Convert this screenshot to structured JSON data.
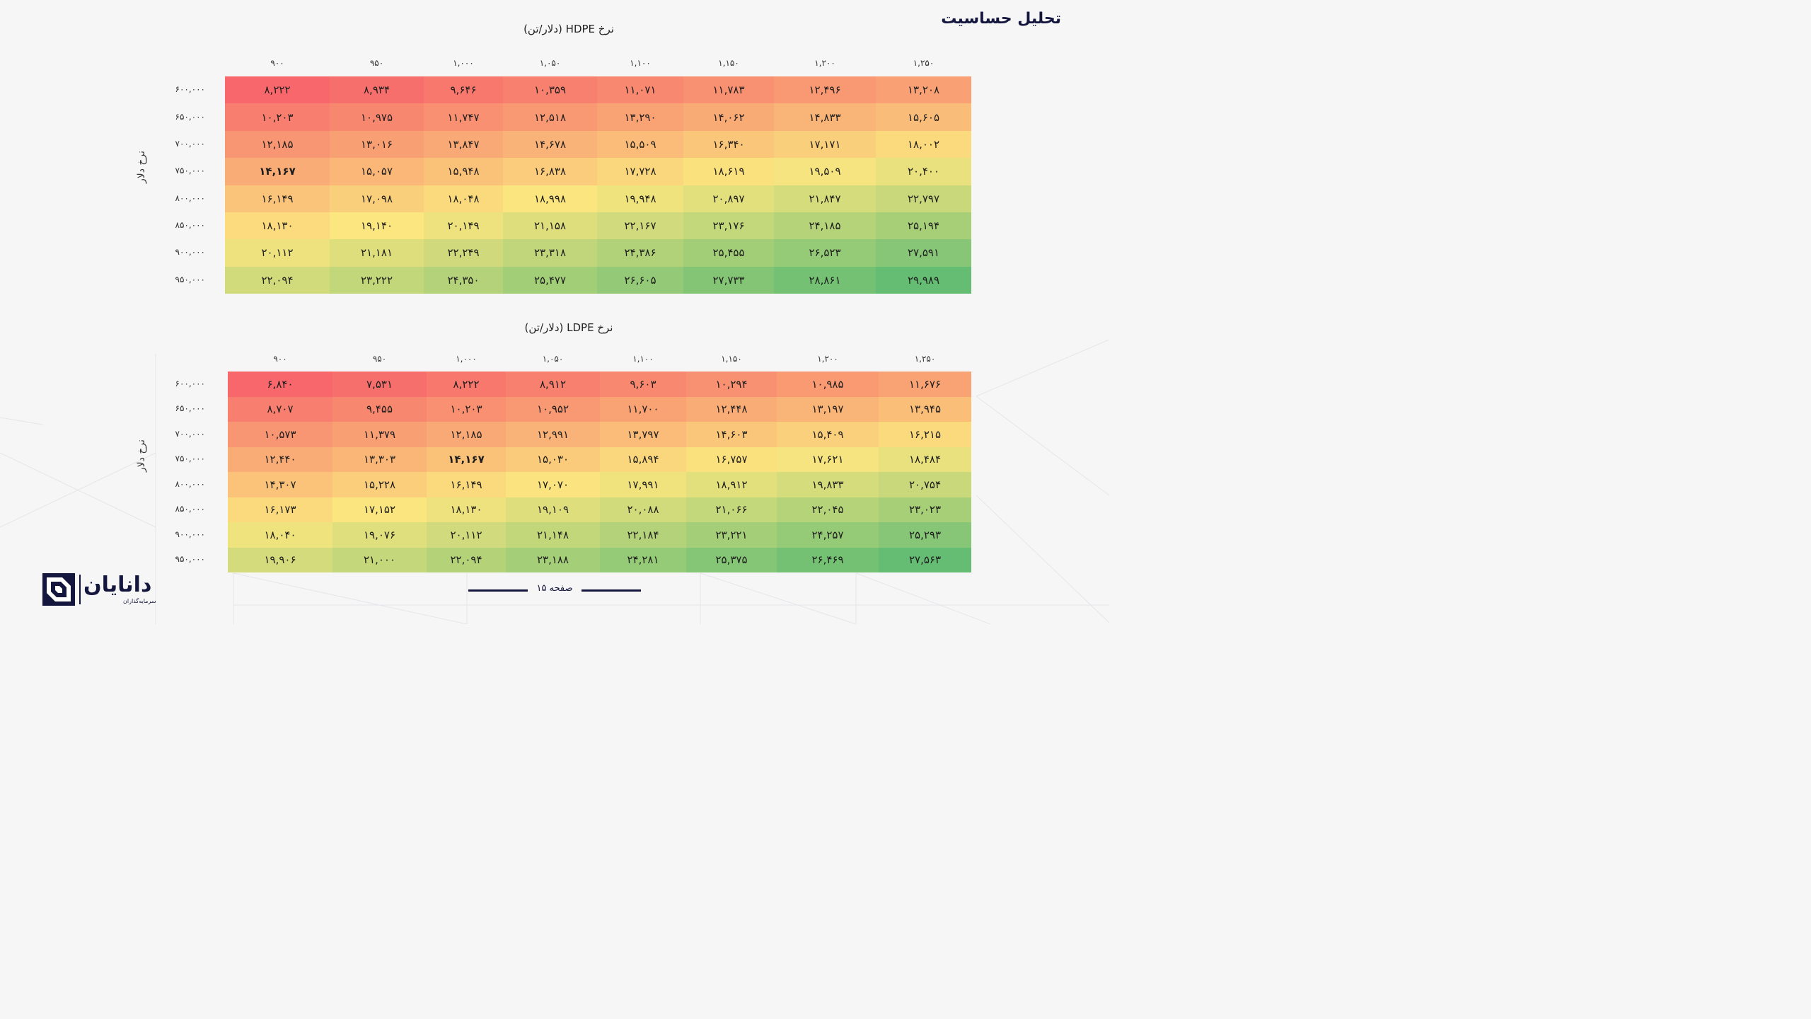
{
  "page_title": "تحلیل حساسیت",
  "tables": [
    {
      "title": "نرخ HDPE (دلار/تن)",
      "row_axis_label": "نرخ دلار",
      "columns": [
        "۹۰۰",
        "۹۵۰",
        "۱,۰۰۰",
        "۱,۰۵۰",
        "۱,۱۰۰",
        "۱,۱۵۰",
        "۱,۲۰۰",
        "۱,۲۵۰"
      ],
      "rows": [
        "۶۰۰,۰۰۰",
        "۶۵۰,۰۰۰",
        "۷۰۰,۰۰۰",
        "۷۵۰,۰۰۰",
        "۸۰۰,۰۰۰",
        "۸۵۰,۰۰۰",
        "۹۰۰,۰۰۰",
        "۹۵۰,۰۰۰"
      ],
      "highlight": [
        3,
        0
      ],
      "values": [
        [
          "۸,۲۲۲",
          "۸,۹۳۴",
          "۹,۶۴۶",
          "۱۰,۳۵۹",
          "۱۱,۰۷۱",
          "۱۱,۷۸۳",
          "۱۲,۴۹۶",
          "۱۳,۲۰۸"
        ],
        [
          "۱۰,۲۰۳",
          "۱۰,۹۷۵",
          "۱۱,۷۴۷",
          "۱۲,۵۱۸",
          "۱۳,۲۹۰",
          "۱۴,۰۶۲",
          "۱۴,۸۳۳",
          "۱۵,۶۰۵"
        ],
        [
          "۱۲,۱۸۵",
          "۱۳,۰۱۶",
          "۱۳,۸۴۷",
          "۱۴,۶۷۸",
          "۱۵,۵۰۹",
          "۱۶,۳۴۰",
          "۱۷,۱۷۱",
          "۱۸,۰۰۲"
        ],
        [
          "۱۴,۱۶۷",
          "۱۵,۰۵۷",
          "۱۵,۹۴۸",
          "۱۶,۸۳۸",
          "۱۷,۷۲۸",
          "۱۸,۶۱۹",
          "۱۹,۵۰۹",
          "۲۰,۴۰۰"
        ],
        [
          "۱۶,۱۴۹",
          "۱۷,۰۹۸",
          "۱۸,۰۴۸",
          "۱۸,۹۹۸",
          "۱۹,۹۴۸",
          "۲۰,۸۹۷",
          "۲۱,۸۴۷",
          "۲۲,۷۹۷"
        ],
        [
          "۱۸,۱۳۰",
          "۱۹,۱۴۰",
          "۲۰,۱۴۹",
          "۲۱,۱۵۸",
          "۲۲,۱۶۷",
          "۲۳,۱۷۶",
          "۲۴,۱۸۵",
          "۲۵,۱۹۴"
        ],
        [
          "۲۰,۱۱۲",
          "۲۱,۱۸۱",
          "۲۲,۲۴۹",
          "۲۳,۳۱۸",
          "۲۴,۳۸۶",
          "۲۵,۴۵۵",
          "۲۶,۵۲۳",
          "۲۷,۵۹۱"
        ],
        [
          "۲۲,۰۹۴",
          "۲۳,۲۲۲",
          "۲۴,۳۵۰",
          "۲۵,۴۷۷",
          "۲۶,۶۰۵",
          "۲۷,۷۳۳",
          "۲۸,۸۶۱",
          "۲۹,۹۸۹"
        ]
      ]
    },
    {
      "title": "نرخ LDPE (دلار/تن)",
      "row_axis_label": "نرخ دلار",
      "columns": [
        "۹۰۰",
        "۹۵۰",
        "۱,۰۰۰",
        "۱,۰۵۰",
        "۱,۱۰۰",
        "۱,۱۵۰",
        "۱,۲۰۰",
        "۱,۲۵۰"
      ],
      "rows": [
        "۶۰۰,۰۰۰",
        "۶۵۰,۰۰۰",
        "۷۰۰,۰۰۰",
        "۷۵۰,۰۰۰",
        "۸۰۰,۰۰۰",
        "۸۵۰,۰۰۰",
        "۹۰۰,۰۰۰",
        "۹۵۰,۰۰۰"
      ],
      "highlight": [
        3,
        2
      ],
      "values": [
        [
          "۶,۸۴۰",
          "۷,۵۳۱",
          "۸,۲۲۲",
          "۸,۹۱۲",
          "۹,۶۰۳",
          "۱۰,۲۹۴",
          "۱۰,۹۸۵",
          "۱۱,۶۷۶"
        ],
        [
          "۸,۷۰۷",
          "۹,۴۵۵",
          "۱۰,۲۰۳",
          "۱۰,۹۵۲",
          "۱۱,۷۰۰",
          "۱۲,۴۴۸",
          "۱۳,۱۹۷",
          "۱۳,۹۴۵"
        ],
        [
          "۱۰,۵۷۳",
          "۱۱,۳۷۹",
          "۱۲,۱۸۵",
          "۱۲,۹۹۱",
          "۱۳,۷۹۷",
          "۱۴,۶۰۳",
          "۱۵,۴۰۹",
          "۱۶,۲۱۵"
        ],
        [
          "۱۲,۴۴۰",
          "۱۳,۳۰۳",
          "۱۴,۱۶۷",
          "۱۵,۰۳۰",
          "۱۵,۸۹۴",
          "۱۶,۷۵۷",
          "۱۷,۶۲۱",
          "۱۸,۴۸۴"
        ],
        [
          "۱۴,۳۰۷",
          "۱۵,۲۲۸",
          "۱۶,۱۴۹",
          "۱۷,۰۷۰",
          "۱۷,۹۹۱",
          "۱۸,۹۱۲",
          "۱۹,۸۳۳",
          "۲۰,۷۵۴"
        ],
        [
          "۱۶,۱۷۳",
          "۱۷,۱۵۲",
          "۱۸,۱۳۰",
          "۱۹,۱۰۹",
          "۲۰,۰۸۸",
          "۲۱,۰۶۶",
          "۲۲,۰۴۵",
          "۲۳,۰۲۳"
        ],
        [
          "۱۸,۰۴۰",
          "۱۹,۰۷۶",
          "۲۰,۱۱۲",
          "۲۱,۱۴۸",
          "۲۲,۱۸۴",
          "۲۳,۲۲۱",
          "۲۴,۲۵۷",
          "۲۵,۲۹۳"
        ],
        [
          "۱۹,۹۰۶",
          "۲۱,۰۰۰",
          "۲۲,۰۹۴",
          "۲۳,۱۸۸",
          "۲۴,۲۸۱",
          "۲۵,۳۷۵",
          "۲۶,۴۶۹",
          "۲۷,۵۶۳"
        ]
      ]
    }
  ],
  "footer": {
    "page_label": "صفحه ۱۵"
  },
  "logo": {
    "name": "دانایان",
    "tagline": "سرمایه‌گذاران"
  },
  "colors": {
    "brand": "#14163d",
    "heat_low": "#f7676b",
    "heat_mid": "#fbe67f",
    "heat_high": "#65bd73"
  }
}
